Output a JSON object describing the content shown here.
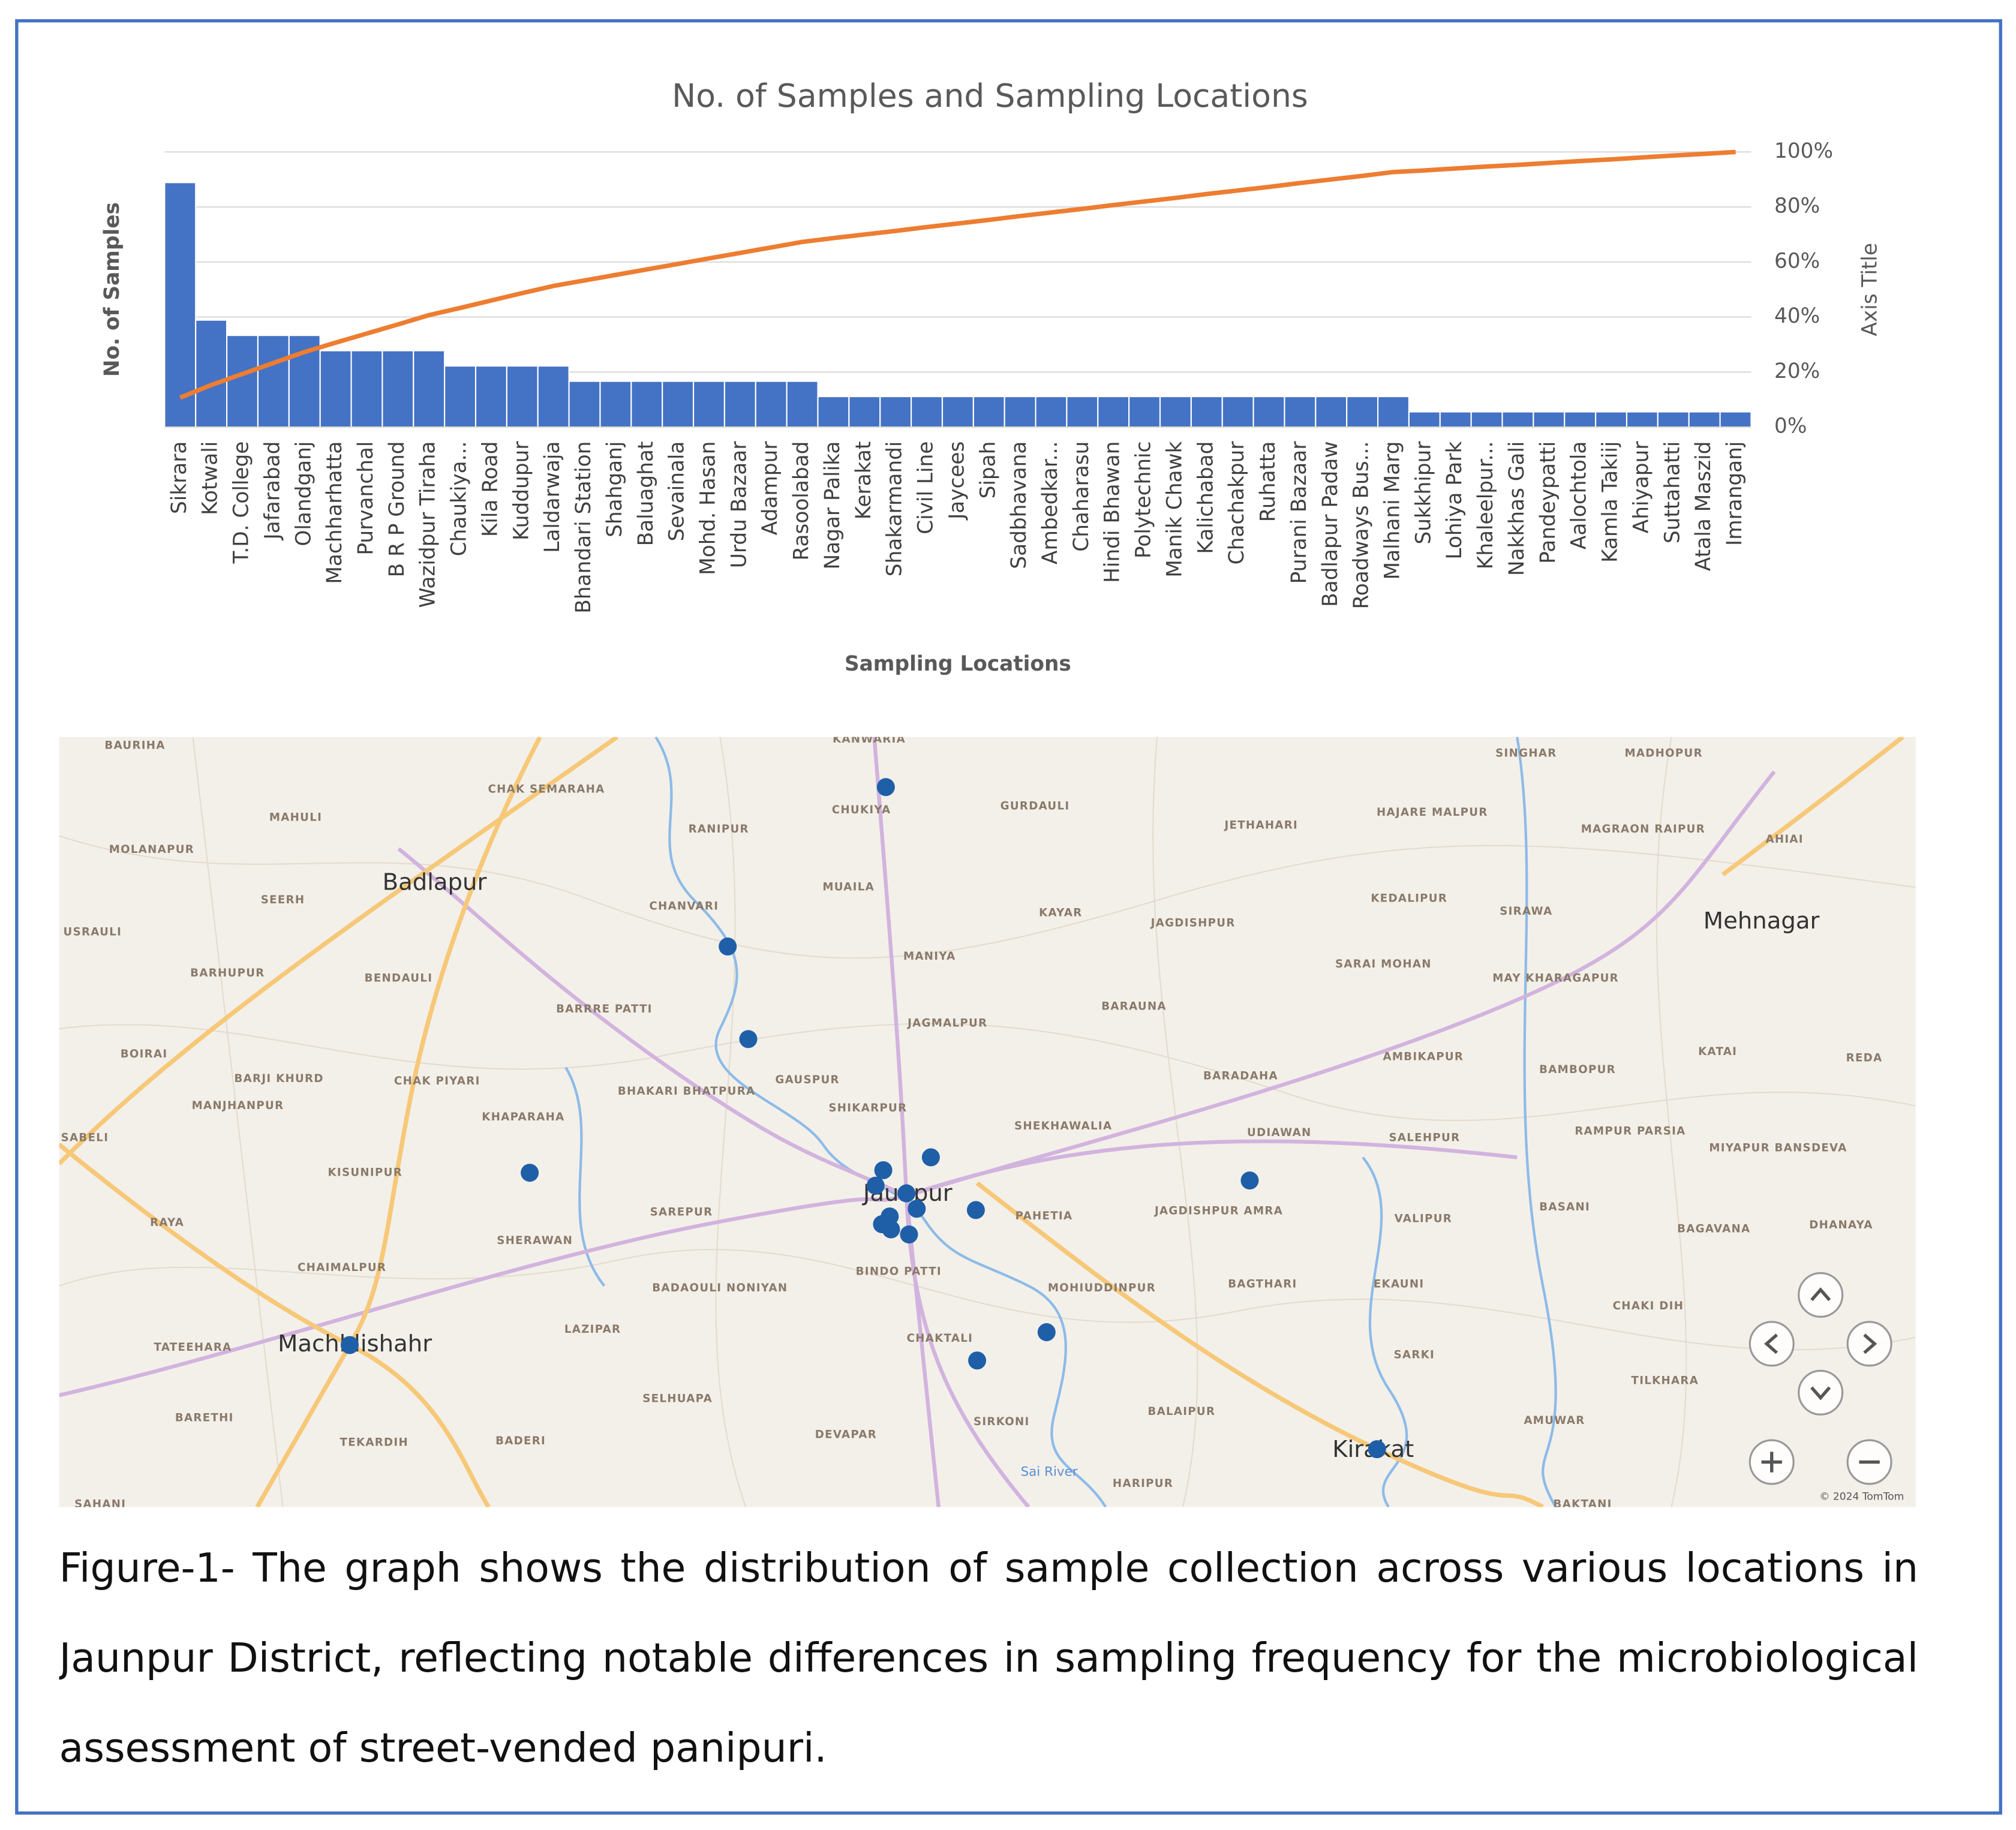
{
  "chart_data": {
    "type": "bar",
    "title": "No. of Samples and Sampling Locations",
    "ylabel": "No. of Samples",
    "xlabel": "Sampling Locations",
    "y2label": "Axis Title",
    "categories": [
      "Sikrara",
      "Kotwali",
      "T.D. College",
      "Jafarabad",
      "Olandganj",
      "Machharhatta",
      "Purvanchal",
      "B R P Ground",
      "Wazidpur Tiraha",
      "Chaukiya...",
      "Kila Road",
      "Kuddupur",
      "Laldarwaja",
      "Bhandari Station",
      "Shahganj",
      "Baluaghat",
      "Sevainala",
      "Mohd. Hasan",
      "Urdu Bazaar",
      "Adampur",
      "Rasoolabad",
      "Nagar Palika",
      "Kerakat",
      "Shakarmandi",
      "Civil Line",
      "Jaycees",
      "Sipah",
      "Sadbhavana",
      "Ambedkar...",
      "Chaharasu",
      "Hindi Bhawan",
      "Polytechnic",
      "Manik Chawk",
      "Kalichabad",
      "Chachakpur",
      "Ruhatta",
      "Purani Bazaar",
      "Badlapur Padaw",
      "Roadways Bus...",
      "Malhani Marg",
      "Sukkhipur",
      "Lohiya Park",
      "Khaleelpur...",
      "Nakkhas Gali",
      "Pandeypatti",
      "Aalochtola",
      "Kamla Takiij",
      "Ahiyapur",
      "Suttahatti",
      "Atala Maszid",
      "Imranganj"
    ],
    "series": [
      {
        "type": "bar",
        "color": "#4472c4",
        "values": [
          16,
          7,
          6,
          6,
          6,
          5,
          5,
          5,
          5,
          4,
          4,
          4,
          4,
          3,
          3,
          3,
          3,
          3,
          3,
          3,
          3,
          2,
          2,
          2,
          2,
          2,
          2,
          2,
          2,
          2,
          2,
          2,
          2,
          2,
          2,
          2,
          2,
          2,
          2,
          2,
          1,
          1,
          1,
          1,
          1,
          1,
          1,
          1,
          1,
          1,
          1
        ]
      },
      {
        "type": "line",
        "axis": "y2",
        "color": "#ed7d31",
        "values": [
          10.7,
          15.3,
          19.3,
          23.3,
          27.3,
          30.7,
          34,
          37.3,
          40.7,
          43.3,
          46,
          48.7,
          51.3,
          53.3,
          55.3,
          57.3,
          59.3,
          61.3,
          63.3,
          65.3,
          67.3,
          68.7,
          70,
          71.3,
          72.7,
          74,
          75.3,
          76.7,
          78,
          79.3,
          80.7,
          82,
          83.3,
          84.7,
          86,
          87.3,
          88.7,
          90,
          91.3,
          92.7,
          93.3,
          94,
          94.7,
          95.3,
          96,
          96.7,
          97.3,
          98,
          98.7,
          99.3,
          100
        ]
      }
    ],
    "ylim": [
      0,
      18
    ],
    "y2lim": [
      0,
      100
    ],
    "y2ticks": [
      {
        "value": 0,
        "label": "0%"
      },
      {
        "value": 20,
        "label": "20%"
      },
      {
        "value": 40,
        "label": "40%"
      },
      {
        "value": 60,
        "label": "60%"
      },
      {
        "value": 80,
        "label": "80%"
      },
      {
        "value": 100,
        "label": "100%"
      }
    ],
    "grid": true
  },
  "map": {
    "towns": [
      "Badlapur",
      "Mehnagar",
      "Jaunpur",
      "Machhlishahr",
      "Kirakat"
    ],
    "labels": [
      "BAURIHA",
      "CHAK SEMARAHA",
      "MAHULI",
      "MOLANAPUR",
      "SEERH",
      "USRAULI",
      "BARHUPUR",
      "BENDAULI",
      "BOIRAI",
      "BARJI KHURD",
      "CHAK PIYARI",
      "MANJHANPUR",
      "SABELI",
      "KHAPARAHA",
      "KISUNIPUR",
      "RAYA",
      "SHERAWAN",
      "CHAIMALPUR",
      "TATEEHARA",
      "LAZIPAR",
      "BARETHI",
      "TEKARDIH",
      "BADERI",
      "SELHUAPA",
      "KANWARIA",
      "CHUKIYA",
      "GURDAULI",
      "RANIPUR",
      "MUAILA",
      "CHANVARI",
      "KAYAR",
      "MANIYA",
      "BARRRE PATTI",
      "JAGMALPUR",
      "BHAKARI BHATPURA",
      "GAUSPUR",
      "SHIKARPUR",
      "SHEKHAWALIA",
      "SAREPUR",
      "BADAOULI NONIYAN",
      "BINDO PATTI",
      "PAHETIA",
      "MOHIUDDINPUR",
      "CHAKTALI",
      "DEVAPAR",
      "SIRKONI",
      "BALAIPUR",
      "HARIPUR",
      "JETHAHARI",
      "HAJARE MALPUR",
      "JAGDISHPUR",
      "KEDALIPUR",
      "SIRAWA",
      "SARAI MOHAN",
      "MAY KHARAGAPUR",
      "BARAUNA",
      "BARADAHA",
      "AMBIKAPUR",
      "UDIAWAN",
      "SALEHPUR",
      "JAGDISHPUR AMRA",
      "VALIPUR",
      "BAGTHARI",
      "EKAUNI",
      "SARKI",
      "SINGHAR",
      "MADHOPUR",
      "MAGRAON RAIPUR",
      "AHIAI",
      "BAMBOPUR",
      "KATAI",
      "REDA",
      "RAMPUR PARSIA",
      "MIYAPUR BANSDEVA",
      "BASANI",
      "BAGAVANA",
      "DHANAYA",
      "CHAKI DIH",
      "TILKHARA",
      "AMUWAR",
      "SAHANI",
      "BAKTANI",
      "Sai River",
      "© 2024 TomTom"
    ]
  },
  "caption": "Figure-1- The graph shows the distribution of sample collection across various locations in Jaunpur District, reflecting notable differences in sampling frequency for the microbiological assessment of street-vended panipuri."
}
